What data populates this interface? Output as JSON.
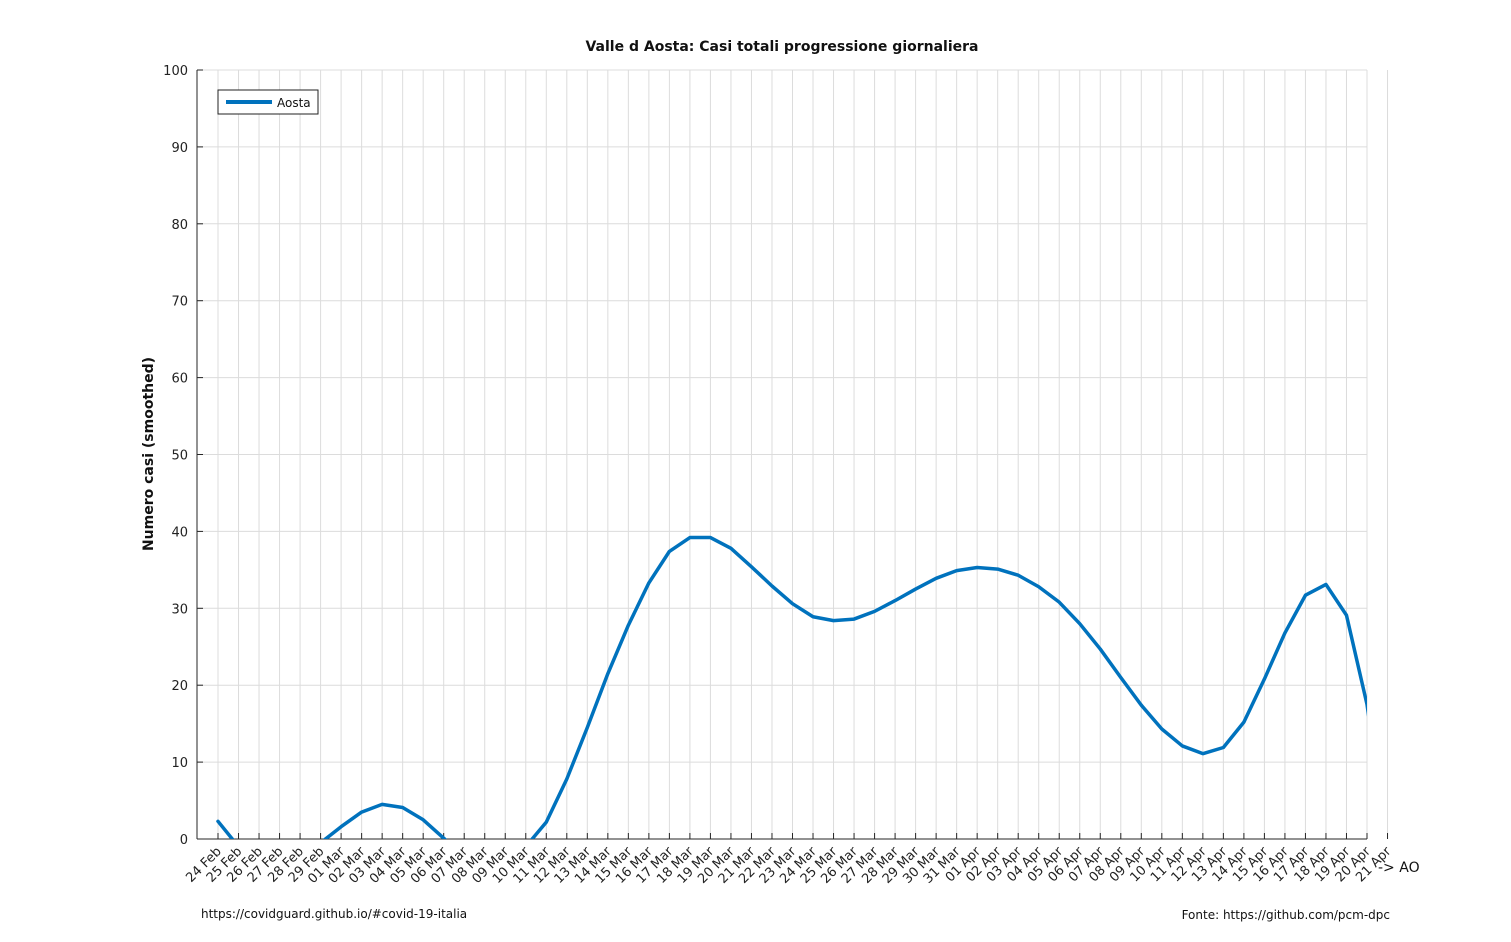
{
  "chart_data": {
    "type": "line",
    "title": "Valle d Aosta: Casi totali progressione giornaliera",
    "ylabel": "Numero casi (smoothed)",
    "xlabel": "",
    "x_suffix": "-> AO",
    "ylim": [
      0,
      100
    ],
    "yticks": [
      0,
      10,
      20,
      30,
      40,
      50,
      60,
      70,
      80,
      90,
      100
    ],
    "grid": true,
    "legend_position": "top-left",
    "categories": [
      "24 Feb",
      "25 Feb",
      "26 Feb",
      "27 Feb",
      "28 Feb",
      "29 Feb",
      "01 Mar",
      "02 Mar",
      "03 Mar",
      "04 Mar",
      "05 Mar",
      "06 Mar",
      "07 Mar",
      "08 Mar",
      "09 Mar",
      "10 Mar",
      "11 Mar",
      "12 Mar",
      "13 Mar",
      "14 Mar",
      "15 Mar",
      "16 Mar",
      "17 Mar",
      "18 Mar",
      "19 Mar",
      "20 Mar",
      "21 Mar",
      "22 Mar",
      "23 Mar",
      "24 Mar",
      "25 Mar",
      "26 Mar",
      "27 Mar",
      "28 Mar",
      "29 Mar",
      "30 Mar",
      "31 Mar",
      "01 Apr",
      "02 Apr",
      "03 Apr",
      "04 Apr",
      "05 Apr",
      "06 Apr",
      "07 Apr",
      "08 Apr",
      "09 Apr",
      "10 Apr",
      "11 Apr",
      "12 Apr",
      "13 Apr",
      "14 Apr",
      "15 Apr",
      "16 Apr",
      "17 Apr",
      "18 Apr",
      "19 Apr",
      "20 Apr",
      "21 Apr"
    ],
    "series": [
      {
        "name": "Aosta",
        "color": "#0072bd",
        "values": [
          2.3,
          -1.0,
          -2.5,
          -2.8,
          -2.2,
          -0.5,
          1.6,
          3.5,
          4.5,
          4.1,
          2.5,
          0.1,
          -2.3,
          -3.5,
          -3.3,
          -1.0,
          2.2,
          7.8,
          14.5,
          21.5,
          27.8,
          33.3,
          37.4,
          39.2,
          39.2,
          37.8,
          35.4,
          32.9,
          30.6,
          28.9,
          28.4,
          28.6,
          29.6,
          31.0,
          32.5,
          33.9,
          34.9,
          35.3,
          35.1,
          34.3,
          32.8,
          30.8,
          28.0,
          24.7,
          21.0,
          17.4,
          14.3,
          12.1,
          11.1,
          11.9,
          15.2,
          20.8,
          26.8,
          31.7,
          33.1,
          29.1,
          17.5,
          -1.0
        ]
      }
    ]
  },
  "footer": {
    "left": "https://covidguard.github.io/#covid-19-italia",
    "right": "Fonte: https://github.com/pcm-dpc"
  }
}
